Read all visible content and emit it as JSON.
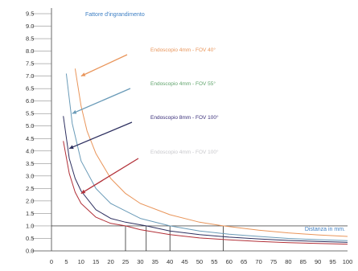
{
  "chart_data": {
    "type": "line",
    "title": "",
    "ylabel": "Fattore d'ingrandimento",
    "xlabel": "Distanza in mm.",
    "xlim": [
      0,
      100
    ],
    "ylim": [
      0,
      9.5
    ],
    "x_ticks": [
      "0",
      "5",
      "10",
      "15",
      "20",
      "25",
      "30",
      "35",
      "40",
      "45",
      "50",
      "55",
      "60",
      "65",
      "70",
      "75",
      "80",
      "85",
      "90",
      "95",
      "100"
    ],
    "y_ticks": [
      "0.0",
      "0.5",
      "1.0",
      "1.5",
      "2.0",
      "2.5",
      "3.0",
      "3.5",
      "4.0",
      "4.5",
      "5.0",
      "5.5",
      "6.0",
      "6.5",
      "7.0",
      "7.5",
      "8.0",
      "8.5",
      "9.0",
      "9.5"
    ],
    "grid": false,
    "reference_line": {
      "y": 1.0
    },
    "reference_drops": [
      {
        "x": 25,
        "y": 1.0
      },
      {
        "x": 32,
        "y": 1.0
      },
      {
        "x": 40,
        "y": 1.0
      },
      {
        "x": 58,
        "y": 1.0
      }
    ],
    "series": [
      {
        "name": "Endoscopio 4mm - FOV 40°",
        "color": "#e9955a",
        "x": [
          8,
          10,
          12,
          15,
          20,
          25,
          30,
          40,
          50,
          58,
          70,
          80,
          90,
          100
        ],
        "y": [
          7.3,
          5.8,
          4.8,
          3.9,
          2.9,
          2.3,
          1.9,
          1.45,
          1.15,
          1.0,
          0.83,
          0.72,
          0.64,
          0.58
        ]
      },
      {
        "name": "Endoscopio 4mm - FOV 55°",
        "color": "#6a9bb8",
        "x": [
          5,
          7,
          10,
          15,
          20,
          25,
          30,
          40,
          50,
          60,
          70,
          80,
          90,
          100
        ],
        "y": [
          7.1,
          5.1,
          3.6,
          2.5,
          1.9,
          1.6,
          1.3,
          1.0,
          0.8,
          0.67,
          0.58,
          0.5,
          0.45,
          0.41
        ]
      },
      {
        "name": "Endoscopio 8mm - FOV 100°",
        "color": "#2e3060",
        "x": [
          4,
          6,
          8,
          10,
          15,
          20,
          25,
          32,
          40,
          50,
          60,
          70,
          80,
          90,
          100
        ],
        "y": [
          5.4,
          3.7,
          2.9,
          2.4,
          1.65,
          1.3,
          1.15,
          1.0,
          0.8,
          0.65,
          0.55,
          0.48,
          0.42,
          0.38,
          0.34
        ]
      },
      {
        "name": "Endoscopio 4mm - FOV 100°",
        "color": "#b23038",
        "x": [
          4,
          6,
          8,
          10,
          15,
          20,
          25,
          30,
          40,
          50,
          60,
          70,
          80,
          90,
          100
        ],
        "y": [
          4.4,
          3.1,
          2.35,
          1.9,
          1.35,
          1.1,
          1.0,
          0.85,
          0.65,
          0.52,
          0.44,
          0.38,
          0.33,
          0.3,
          0.27
        ]
      }
    ],
    "annotations": [
      {
        "text": "Endoscopio 4mm - FOV 40°",
        "color": "#e9955a",
        "arrow_to": [
          10,
          7.0
        ]
      },
      {
        "text": "Endoscopio 4mm - FOV 55°",
        "color": "#5fa36b",
        "arrow_to": [
          7,
          5.5
        ]
      },
      {
        "text": "Endoscopio 8mm - FOV 100°",
        "color": "#3a2f7a",
        "arrow_to": [
          6,
          4.1
        ]
      },
      {
        "text": "Endoscopio 4mm - FOV 100°",
        "color": "#c8c8cc",
        "arrow_to": [
          10,
          2.3
        ]
      }
    ],
    "ylabel_color": "#3d7fc4",
    "xlabel_color": "#3d7fc4",
    "annotation_arrow_colors": [
      "#e9955a",
      "#6a9bb8",
      "#2e3060",
      "#b23038"
    ]
  }
}
